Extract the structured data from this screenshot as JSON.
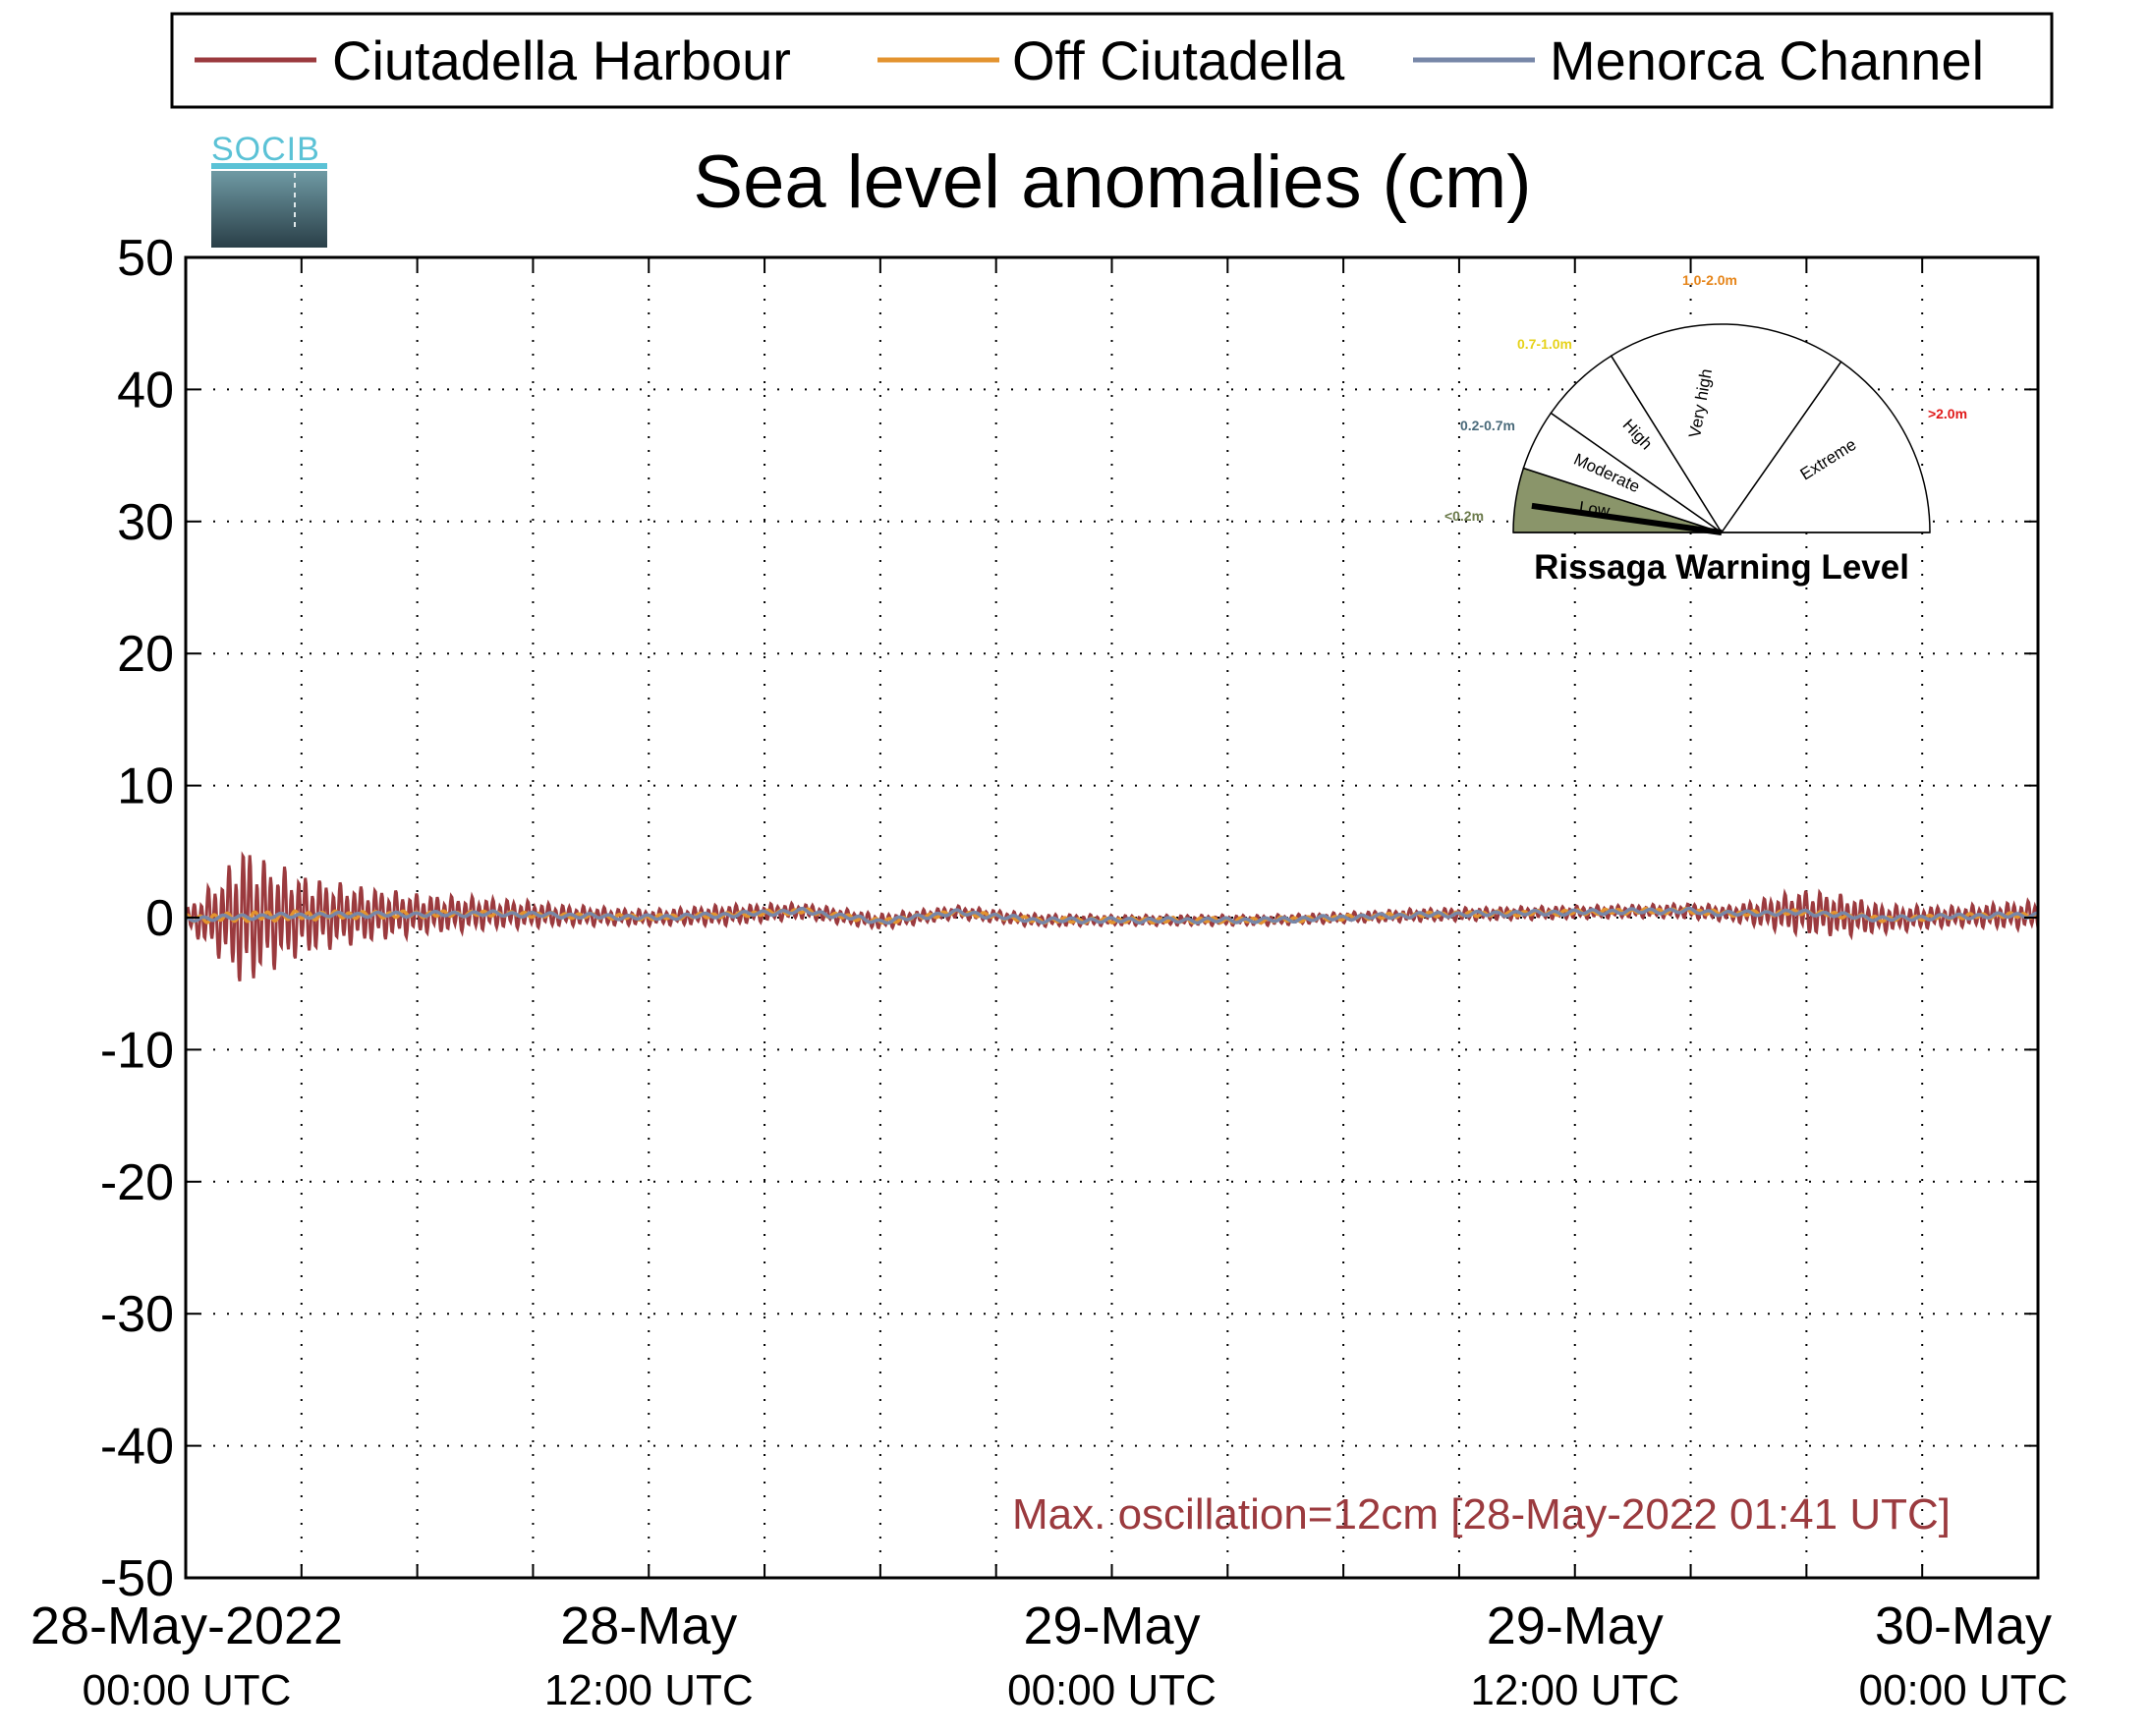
{
  "chart_data": {
    "type": "line",
    "title": "Sea level anomalies (cm)",
    "xlabel": "",
    "ylabel": "",
    "ylim": [
      -50,
      50
    ],
    "yticks": [
      "50",
      "40",
      "30",
      "20",
      "10",
      "0",
      "-10",
      "-20",
      "-30",
      "-40",
      "-50"
    ],
    "xlim": [
      "2022-05-28T00:00",
      "2022-05-30T00:00"
    ],
    "xticks": [
      {
        "line1": "28-May-2022",
        "line2": "00:00 UTC"
      },
      {
        "line1": "28-May",
        "line2": "12:00 UTC"
      },
      {
        "line1": "29-May",
        "line2": "00:00 UTC"
      },
      {
        "line1": "29-May",
        "line2": "12:00 UTC"
      },
      {
        "line1": "30-May",
        "line2": "00:00 UTC"
      }
    ],
    "grid": true,
    "legend_position": "top",
    "series": [
      {
        "name": "Ciutadella Harbour",
        "color": "#9b3a3e",
        "envelope_hours": [
          0,
          1,
          1.5,
          2,
          3,
          4,
          6,
          8,
          10,
          12,
          14,
          16,
          18,
          20,
          22,
          24,
          26,
          28,
          30,
          32,
          34,
          36,
          38,
          39,
          40,
          41,
          42,
          43,
          44,
          45,
          46,
          47,
          48
        ],
        "envelope_cm": [
          0.8,
          3.5,
          5.8,
          4.5,
          3.2,
          2.5,
          1.6,
          1.2,
          0.8,
          0.6,
          0.8,
          0.6,
          0.6,
          0.5,
          0.5,
          0.4,
          0.4,
          0.4,
          0.4,
          0.5,
          0.5,
          0.5,
          0.5,
          0.6,
          0.6,
          1.2,
          1.8,
          1.6,
          1.1,
          0.9,
          0.8,
          1.0,
          1.1
        ]
      },
      {
        "name": "Off Ciutadella",
        "color": "#e3932f",
        "envelope_hours": [
          0,
          2,
          4,
          8,
          16,
          24,
          32,
          40,
          48
        ],
        "envelope_cm": [
          0.3,
          0.4,
          0.3,
          0.2,
          0.2,
          0.2,
          0.2,
          0.2,
          0.2
        ]
      },
      {
        "name": "Menorca Channel",
        "color": "#7787a8",
        "envelope_hours": [
          0,
          2,
          4,
          8,
          16,
          24,
          32,
          40,
          48
        ],
        "envelope_cm": [
          0.2,
          0.2,
          0.2,
          0.2,
          0.2,
          0.2,
          0.2,
          0.2,
          0.2
        ]
      }
    ],
    "baseline_hours": [
      0,
      2,
      4,
      8,
      12,
      14,
      16,
      18,
      20,
      22,
      24,
      28,
      32,
      36,
      38,
      39,
      40,
      42,
      44,
      46,
      48
    ],
    "baseline_cm": [
      -0.1,
      0.1,
      0.2,
      0.3,
      0.0,
      0.2,
      0.5,
      -0.3,
      0.4,
      -0.2,
      -0.2,
      -0.2,
      0.2,
      0.4,
      0.5,
      0.5,
      0.3,
      0.4,
      -0.1,
      0.1,
      0.2
    ],
    "annotation": {
      "text": "Max. oscillation=12cm [28-May-2022 01:41 UTC]",
      "color": "#9b3a3e"
    }
  },
  "logo": {
    "text": "SOCIB"
  },
  "gauge": {
    "title": "Rissaga Warning Level",
    "current_level": "Low",
    "levels": [
      {
        "label": "Low",
        "range": "<0.2m",
        "color": "#6b7a4a",
        "fill": "#8a956a"
      },
      {
        "label": "Moderate",
        "range": "0.2-0.7m",
        "color": "#4a6a7a",
        "fill": "#ffffff"
      },
      {
        "label": "High",
        "range": "0.7-1.0m",
        "color": "#e6d21a",
        "fill": "#ffffff"
      },
      {
        "label": "Very high",
        "range": "1.0-2.0m",
        "color": "#e6851a",
        "fill": "#ffffff"
      },
      {
        "label": "Extreme",
        "range": ">2.0m",
        "color": "#e01a1a",
        "fill": "#ffffff"
      }
    ]
  }
}
